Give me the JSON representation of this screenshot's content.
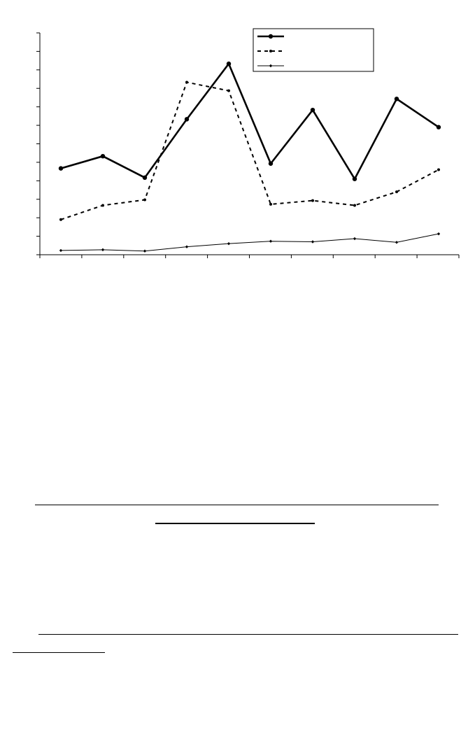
{
  "chart_data": {
    "type": "line",
    "x": [
      1,
      2,
      3,
      4,
      5,
      6,
      7,
      8,
      9,
      10
    ],
    "ylim": [
      0,
      12
    ],
    "y_tick_count": 13,
    "x_tick_count": 11,
    "grid": false,
    "legend": "top-right",
    "series": [
      {
        "style": "bold-solid-circle-markers",
        "color": "#000000",
        "values": [
          4.67,
          5.33,
          4.17,
          7.33,
          10.33,
          4.93,
          7.83,
          4.1,
          8.43,
          6.9
        ]
      },
      {
        "style": "dashed-small-markers",
        "color": "#000000",
        "values": [
          1.9,
          2.67,
          2.97,
          9.33,
          8.87,
          2.73,
          2.93,
          2.67,
          3.4,
          4.6
        ]
      },
      {
        "style": "thin-solid-diamond-markers",
        "color": "#000000",
        "values": [
          0.23,
          0.27,
          0.2,
          0.43,
          0.6,
          0.73,
          0.7,
          0.87,
          0.67,
          1.13
        ]
      }
    ]
  }
}
